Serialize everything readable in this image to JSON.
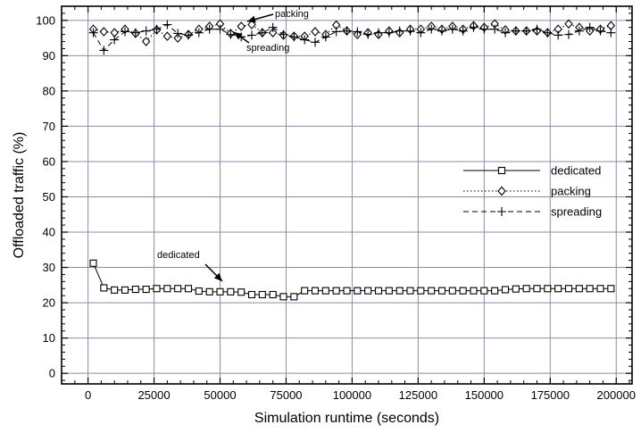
{
  "chart_data": {
    "type": "line",
    "xlabel": "Simulation runtime (seconds)",
    "ylabel": "Offloaded traffic (%)",
    "xlim": [
      -10000,
      206000
    ],
    "ylim": [
      -3,
      104
    ],
    "xticks": [
      0,
      25000,
      50000,
      75000,
      100000,
      125000,
      150000,
      175000,
      200000
    ],
    "yticks": [
      0,
      10,
      20,
      30,
      40,
      50,
      60,
      70,
      80,
      90,
      100
    ],
    "grid": true,
    "legend": "center-right",
    "series": [
      {
        "name": "dedicated",
        "marker": "square",
        "line": "solid",
        "x": [
          2000,
          6000,
          10000,
          14000,
          18000,
          22000,
          26000,
          30000,
          34000,
          38000,
          42000,
          46000,
          50000,
          54000,
          58000,
          62000,
          66000,
          70000,
          74000,
          78000,
          82000,
          86000,
          90000,
          94000,
          98000,
          102000,
          106000,
          110000,
          114000,
          118000,
          122000,
          126000,
          130000,
          134000,
          138000,
          142000,
          146000,
          150000,
          154000,
          158000,
          162000,
          166000,
          170000,
          174000,
          178000,
          182000,
          186000,
          190000,
          194000,
          198000
        ],
        "y": [
          31.2,
          24.2,
          23.6,
          23.6,
          23.8,
          23.8,
          24.0,
          24.0,
          24.0,
          24.0,
          23.3,
          23.1,
          23.1,
          23.1,
          23.0,
          22.3,
          22.3,
          22.3,
          21.7,
          21.7,
          23.4,
          23.4,
          23.4,
          23.4,
          23.4,
          23.4,
          23.4,
          23.4,
          23.4,
          23.4,
          23.4,
          23.4,
          23.4,
          23.4,
          23.4,
          23.4,
          23.4,
          23.4,
          23.4,
          23.7,
          23.9,
          24.0,
          24.0,
          24.0,
          24.0,
          24.0,
          24.0,
          24.0,
          24.0,
          24.0
        ]
      },
      {
        "name": "packing",
        "marker": "diamond",
        "line": "dotted",
        "x": [
          2000,
          6000,
          10000,
          14000,
          18000,
          22000,
          26000,
          30000,
          34000,
          38000,
          42000,
          46000,
          50000,
          54000,
          58000,
          62000,
          66000,
          70000,
          74000,
          78000,
          82000,
          86000,
          90000,
          94000,
          98000,
          102000,
          106000,
          110000,
          114000,
          118000,
          122000,
          126000,
          130000,
          134000,
          138000,
          142000,
          146000,
          150000,
          154000,
          158000,
          162000,
          166000,
          170000,
          174000,
          178000,
          182000,
          186000,
          190000,
          194000,
          198000
        ],
        "y": [
          97.5,
          96.8,
          96.5,
          97.5,
          96.3,
          94.0,
          97.3,
          95.5,
          95.0,
          96.0,
          97.5,
          98.3,
          99.0,
          96.3,
          98.3,
          98.8,
          96.5,
          96.5,
          95.8,
          95.5,
          95.5,
          96.8,
          96.0,
          98.7,
          97.0,
          96.0,
          96.5,
          96.0,
          97.0,
          96.5,
          97.5,
          97.5,
          98.3,
          97.5,
          98.3,
          97.5,
          98.5,
          98.0,
          99.0,
          97.3,
          97.0,
          97.0,
          97.0,
          96.5,
          97.5,
          99.0,
          98.0,
          97.0,
          97.5,
          98.5
        ]
      },
      {
        "name": "spreading",
        "marker": "plus",
        "line": "dashed",
        "x": [
          2000,
          6000,
          10000,
          14000,
          18000,
          22000,
          26000,
          30000,
          34000,
          38000,
          42000,
          46000,
          50000,
          54000,
          58000,
          62000,
          66000,
          70000,
          74000,
          78000,
          82000,
          86000,
          90000,
          94000,
          98000,
          102000,
          106000,
          110000,
          114000,
          118000,
          122000,
          126000,
          130000,
          134000,
          138000,
          142000,
          146000,
          150000,
          154000,
          158000,
          162000,
          166000,
          170000,
          174000,
          178000,
          182000,
          186000,
          190000,
          194000,
          198000
        ],
        "y": [
          96.5,
          91.5,
          94.5,
          96.8,
          96.5,
          97.0,
          97.5,
          98.8,
          96.3,
          95.8,
          96.5,
          97.5,
          97.5,
          96.0,
          95.3,
          95.8,
          96.5,
          98.0,
          96.0,
          95.3,
          94.5,
          93.8,
          95.3,
          96.8,
          97.0,
          96.8,
          96.0,
          96.5,
          96.5,
          97.0,
          97.0,
          96.5,
          97.5,
          97.0,
          97.5,
          97.0,
          98.0,
          97.5,
          97.5,
          96.5,
          97.0,
          97.0,
          97.5,
          96.5,
          95.8,
          96.0,
          97.0,
          98.0,
          97.0,
          96.5
        ]
      }
    ],
    "annotations": [
      {
        "text": "packing",
        "points_to": [
          63000,
          98.8
        ]
      },
      {
        "text": "spreading",
        "points_to": [
          58000,
          95.3
        ]
      },
      {
        "text": "dedicated",
        "points_to": [
          54000,
          23.1
        ]
      }
    ]
  }
}
